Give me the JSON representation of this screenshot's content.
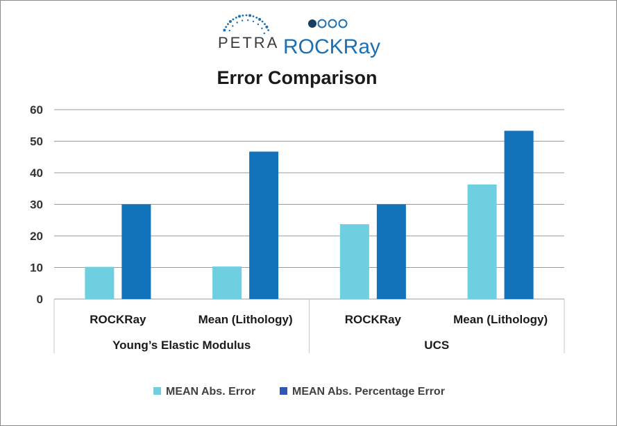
{
  "logos": {
    "petra": "PETRA",
    "rockray": "ROCKRay"
  },
  "colors": {
    "abs_error": "#6dcfdf",
    "pct_error": "#1272ba",
    "legend_pct_swatch": "#2f57b5",
    "grid": "#9a9a9a",
    "logo_blue": "#1b6fb2",
    "logo_dark": "#173f66"
  },
  "chart_data": {
    "type": "bar",
    "title": "Error Comparison",
    "categories": [
      "ROCKRay",
      "Mean (Lithology)",
      "ROCKRay",
      "Mean (Lithology)"
    ],
    "groups": [
      {
        "label": "Young’s Elastic Modulus",
        "categories": [
          "ROCKRay",
          "Mean (Lithology)"
        ]
      },
      {
        "label": "UCS",
        "categories": [
          "ROCKRay",
          "Mean (Lithology)"
        ]
      }
    ],
    "series": [
      {
        "name": "MEAN Abs. Error",
        "values": [
          10.2,
          10.3,
          23.7,
          36.3
        ]
      },
      {
        "name": "MEAN Abs. Percentage Error",
        "values": [
          30,
          46.7,
          30,
          53.3
        ]
      }
    ],
    "ylim": [
      0,
      60
    ],
    "yticks": [
      0,
      10,
      20,
      30,
      40,
      50,
      60
    ],
    "grid": true,
    "legend": "bottom",
    "xlabel": "",
    "ylabel": ""
  }
}
